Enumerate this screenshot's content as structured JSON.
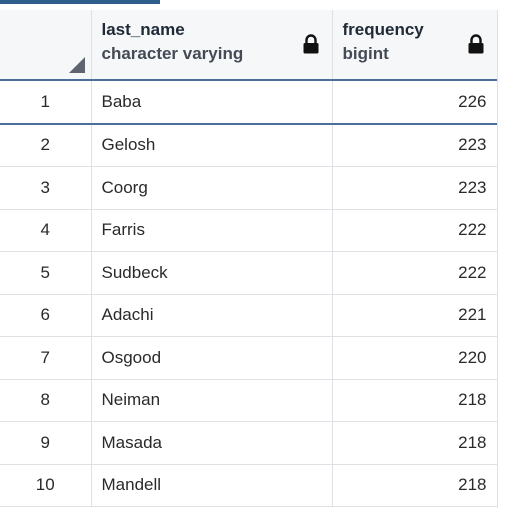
{
  "columns": [
    {
      "name": "last_name",
      "type": "character varying"
    },
    {
      "name": "frequency",
      "type": "bigint"
    }
  ],
  "rows": [
    {
      "num": "1",
      "last_name": "Baba",
      "frequency": "226"
    },
    {
      "num": "2",
      "last_name": "Gelosh",
      "frequency": "223"
    },
    {
      "num": "3",
      "last_name": "Coorg",
      "frequency": "223"
    },
    {
      "num": "4",
      "last_name": "Farris",
      "frequency": "222"
    },
    {
      "num": "5",
      "last_name": "Sudbeck",
      "frequency": "222"
    },
    {
      "num": "6",
      "last_name": "Adachi",
      "frequency": "221"
    },
    {
      "num": "7",
      "last_name": "Osgood",
      "frequency": "220"
    },
    {
      "num": "8",
      "last_name": "Neiman",
      "frequency": "218"
    },
    {
      "num": "9",
      "last_name": "Masada",
      "frequency": "218"
    },
    {
      "num": "10",
      "last_name": "Mandell",
      "frequency": "218"
    }
  ],
  "icons": {
    "column_lock": "lock-icon",
    "corner": "corner-resize-icon"
  },
  "colors": {
    "header_bg": "#f6f7f9",
    "header_border": "#4b6f99",
    "accent": "#2f5d8c"
  }
}
